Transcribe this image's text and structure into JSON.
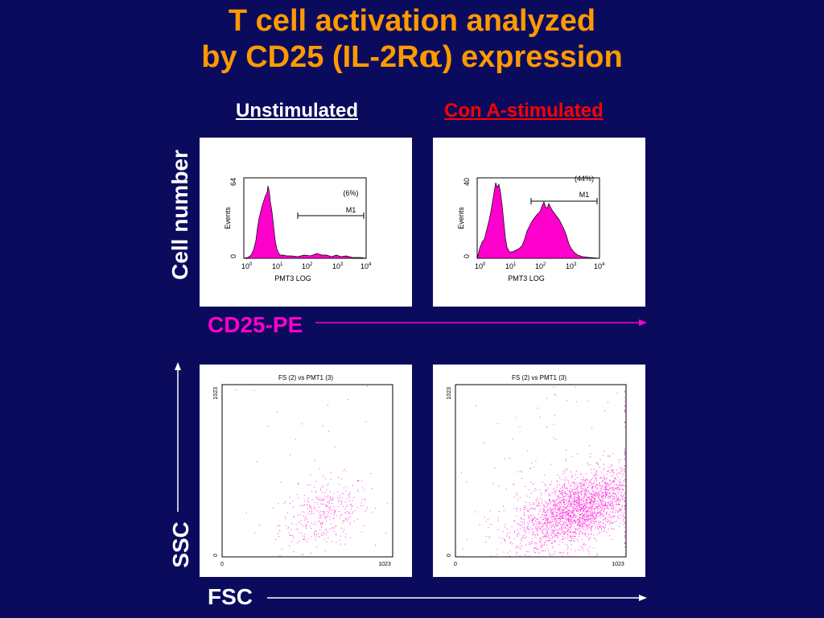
{
  "title": {
    "line1": "T cell activation analyzed",
    "line2_prefix": "by CD25 (IL-2R",
    "line2_greek": "α",
    "line2_suffix": ") expression"
  },
  "columns": {
    "left": "Unstimulated",
    "right": "Con A-stimulated"
  },
  "colors": {
    "background": "#0b0b5e",
    "title": "#ff9900",
    "magenta": "#ff00cc",
    "stimulated_label": "#ff0000"
  },
  "labels": {
    "cell_number": "Cell number",
    "cd25": "CD25-PE",
    "ssc": "SSC",
    "fsc": "FSC"
  },
  "histograms": [
    {
      "ymax_label": "64",
      "ymin_label": "0",
      "ylabel": "Events",
      "xlabel": "PMT3 LOG",
      "percent": "(6%)",
      "gate": "M1",
      "ticks": [
        "10",
        "10",
        "10",
        "10",
        "10"
      ],
      "exps": [
        "0",
        "1",
        "2",
        "3",
        "4"
      ]
    },
    {
      "ymax_label": "40",
      "ymin_label": "0",
      "ylabel": "Events",
      "xlabel": "PMT3 LOG",
      "percent": "(44%)",
      "gate": "M1",
      "ticks": [
        "10",
        "10",
        "10",
        "10",
        "10"
      ],
      "exps": [
        "0",
        "1",
        "2",
        "3",
        "4"
      ]
    }
  ],
  "scatters": [
    {
      "title": "FS (2) vs PMT1 (3)",
      "ymax": "1023",
      "ymin": "0",
      "xmin": "0",
      "xmax": "1023"
    },
    {
      "title": "FS (2) vs PMT1 (3)",
      "ymax": "1023",
      "ymin": "0",
      "xmin": "0",
      "xmax": "1023"
    }
  ]
}
